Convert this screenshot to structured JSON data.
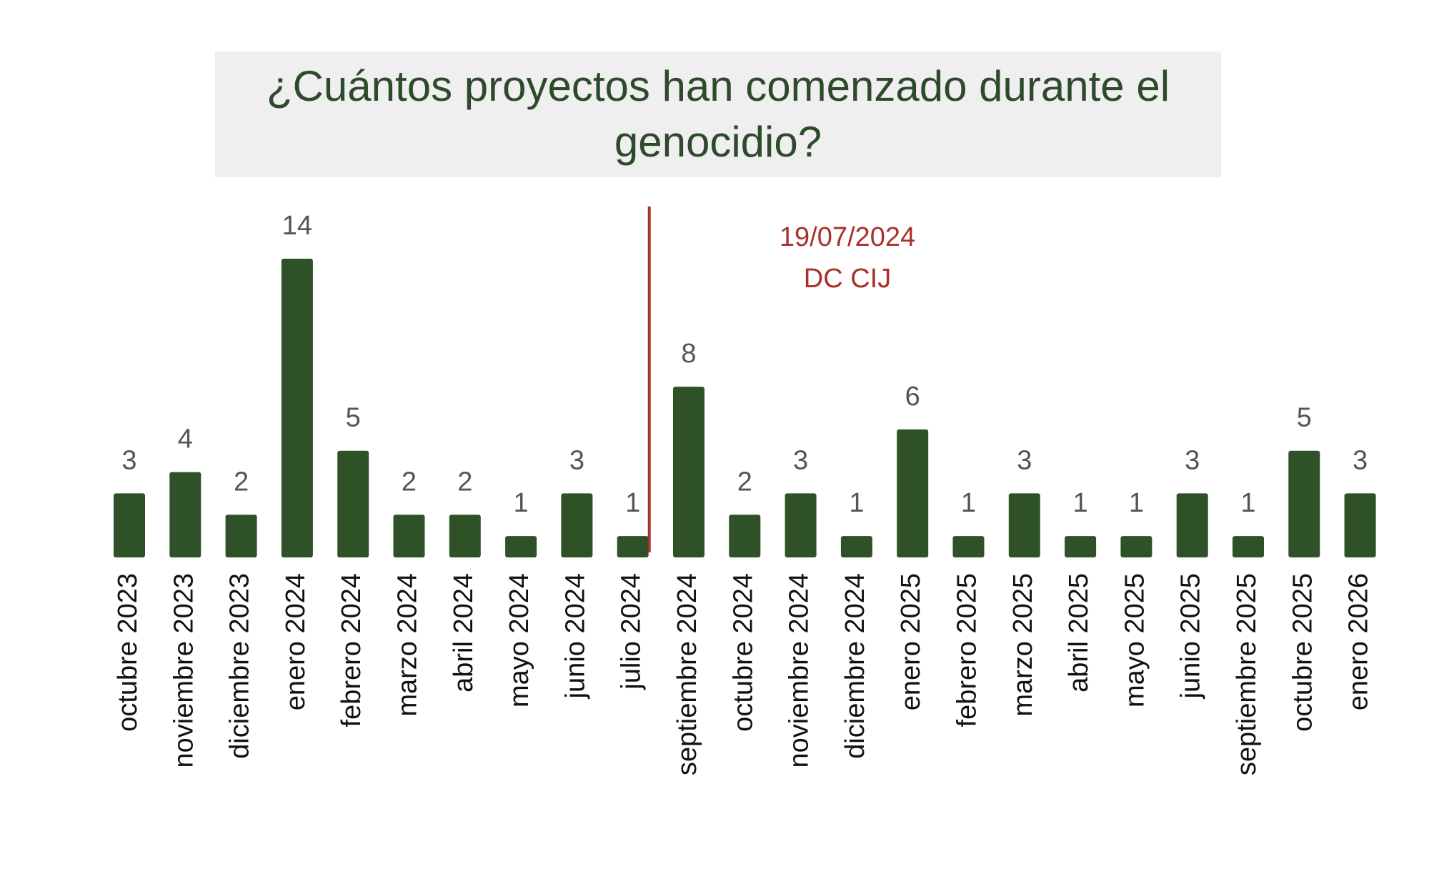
{
  "chart_data": {
    "type": "bar",
    "title": "¿Cuántos proyectos han comenzado durante el genocidio?",
    "categories": [
      "octubre 2023",
      "noviembre 2023",
      "diciembre 2023",
      "enero 2024",
      "febrero 2024",
      "marzo 2024",
      "abril 2024",
      "mayo 2024",
      "junio 2024",
      "julio 2024",
      "septiembre 2024",
      "octubre 2024",
      "noviembre 2024",
      "diciembre 2024",
      "enero 2025",
      "febrero 2025",
      "marzo 2025",
      "abril 2025",
      "mayo 2025",
      "junio 2025",
      "septiembre 2025",
      "octubre 2025",
      "enero 2026"
    ],
    "values": [
      3,
      4,
      2,
      14,
      5,
      2,
      2,
      1,
      3,
      1,
      8,
      2,
      3,
      1,
      6,
      1,
      3,
      1,
      1,
      3,
      1,
      5,
      3
    ],
    "color": "#2e5128",
    "annotation": {
      "lines": [
        "19/07/2024",
        "DC CIJ"
      ],
      "color": "#a8312a"
    }
  }
}
